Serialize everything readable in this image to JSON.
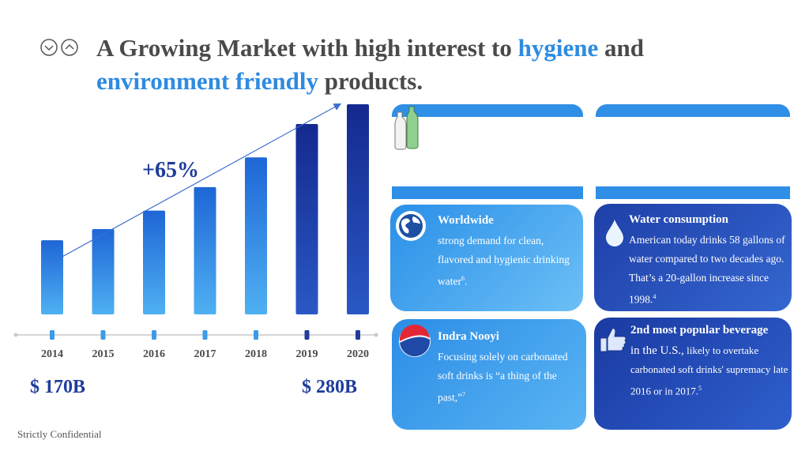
{
  "slide": {
    "title": {
      "part1": "A Growing Market with high interest to ",
      "hl1": "hygiene",
      "part2": " and",
      "hl2": "environment friendly",
      "part3": " products."
    },
    "growth_label": "+65%",
    "start_value": "$ 170B",
    "end_value": "$ 280B",
    "footer": "Strictly Confidential"
  },
  "chart_data": {
    "type": "bar",
    "categories": [
      "2014",
      "2015",
      "2016",
      "2017",
      "2018",
      "2019",
      "2020"
    ],
    "values": [
      170,
      179,
      194,
      213,
      237,
      264,
      280
    ],
    "ylim": [
      110,
      280
    ]
  },
  "cards": {
    "worldwide": {
      "heading": "Worldwide",
      "body": "strong demand for clean, flavored and hygienic drinking water",
      "sup": "6",
      "end": "."
    },
    "water": {
      "heading": "Water consumption",
      "body": "American today drinks 58 gallons of water compared to two decades ago. That’s a 20-gallon increase since 1998.",
      "sup": "4"
    },
    "indra": {
      "heading": "Indra Nooyi",
      "body": "Focusing solely on carbonated soft drinks is “a thing of the past,”",
      "sup": "7"
    },
    "beverage": {
      "heading": "2nd most popular beverage",
      "body1": "in the U.S.,",
      "body2": " likely to overtake carbonated soft drinks' supremacy late 2016 or in 2017.",
      "sup": "5"
    }
  },
  "colors": {
    "accent": "#2e8be0",
    "title": "#4a4a4a",
    "value_label": "#1f3c9c",
    "bar_light": "#4aa8ee",
    "bar_dark": "#15309a"
  },
  "icons": [
    "chevron-down-circle-icon",
    "chevron-up-circle-icon",
    "bottles-icon",
    "globe-icon",
    "water-drop-icon",
    "pepsi-logo-icon",
    "thumbs-up-icon"
  ]
}
